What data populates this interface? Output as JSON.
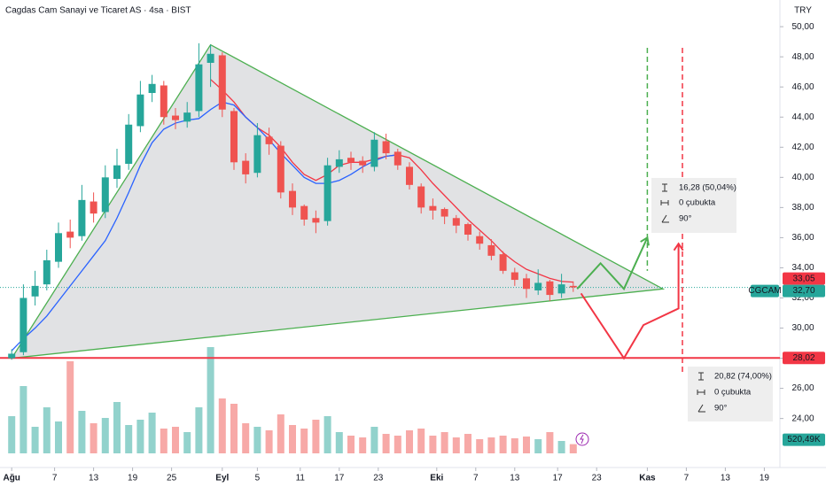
{
  "chart_data": {
    "type": "candlestick",
    "title": "Cagdas Cam Sanayi ve Ticaret AS · 4sa · BIST",
    "currency": "TRY",
    "xlim": [
      0,
      200
    ],
    "xticks": [
      {
        "value": 3,
        "label": "Ağu"
      },
      {
        "value": 14,
        "label": "7"
      },
      {
        "value": 24,
        "label": "13"
      },
      {
        "value": 34,
        "label": "19"
      },
      {
        "value": 44,
        "label": "25"
      },
      {
        "value": 57,
        "label": "Eyl"
      },
      {
        "value": 66,
        "label": "5"
      },
      {
        "value": 77,
        "label": "11"
      },
      {
        "value": 87,
        "label": "17"
      },
      {
        "value": 97,
        "label": "23"
      },
      {
        "value": 112,
        "label": "Eki"
      },
      {
        "value": 122,
        "label": "7"
      },
      {
        "value": 132,
        "label": "13"
      },
      {
        "value": 143,
        "label": "17"
      },
      {
        "value": 153,
        "label": "23"
      },
      {
        "value": 166,
        "label": "Kas"
      },
      {
        "value": 176,
        "label": "7"
      },
      {
        "value": 186,
        "label": "13"
      },
      {
        "value": 196,
        "label": "19"
      }
    ],
    "ylim": [
      21.1,
      51.3
    ],
    "yticks": [
      {
        "value": 24,
        "label": "24,00"
      },
      {
        "value": 26,
        "label": "26,00"
      },
      {
        "value": 28,
        "label": "28,00"
      },
      {
        "value": 30,
        "label": "30,00"
      },
      {
        "value": 32,
        "label": "32,00"
      },
      {
        "value": 34,
        "label": "34,00"
      },
      {
        "value": 36,
        "label": "36,00"
      },
      {
        "value": 38,
        "label": "38,00"
      },
      {
        "value": 40,
        "label": "40,00"
      },
      {
        "value": 42,
        "label": "42,00"
      },
      {
        "value": 44,
        "label": "44,00"
      },
      {
        "value": 46,
        "label": "46,00"
      },
      {
        "value": 48,
        "label": "48,00"
      },
      {
        "value": 50,
        "label": "50,00"
      }
    ],
    "up_color": "#26a69a",
    "down_color": "#ef5350",
    "candles": {
      "x": [
        3,
        6,
        9,
        12,
        15,
        18,
        21,
        24,
        27,
        30,
        33,
        36,
        39,
        42,
        45,
        48,
        51,
        54,
        57,
        60,
        63,
        66,
        69,
        72,
        75,
        78,
        81,
        84,
        87,
        90,
        93,
        96,
        99,
        102,
        105,
        108,
        111,
        114,
        117,
        120,
        123,
        126,
        129,
        132,
        135,
        138,
        141,
        144,
        147
      ],
      "open": [
        28.0,
        28.4,
        32.1,
        32.9,
        34.4,
        36.4,
        36.1,
        38.4,
        37.7,
        39.9,
        40.9,
        43.4,
        45.6,
        46.1,
        44.1,
        43.7,
        44.4,
        47.6,
        48.1,
        44.4,
        41.1,
        40.3,
        42.7,
        42.1,
        39.1,
        38.1,
        37.3,
        37.1,
        40.7,
        41.3,
        41.1,
        40.7,
        42.4,
        41.7,
        40.7,
        39.4,
        38.1,
        37.9,
        37.3,
        36.9,
        36.1,
        35.5,
        34.9,
        33.7,
        33.3,
        32.5,
        33.1,
        32.3,
        32.8
      ],
      "high": [
        28.6,
        32.9,
        33.8,
        35.2,
        37.0,
        37.2,
        39.5,
        39.0,
        40.8,
        41.9,
        44.2,
        46.4,
        46.8,
        46.4,
        44.6,
        45.0,
        48.9,
        48.8,
        48.3,
        44.6,
        41.6,
        43.6,
        43.3,
        42.4,
        39.6,
        38.2,
        37.8,
        41.3,
        41.8,
        41.7,
        41.4,
        43.0,
        42.9,
        41.9,
        41.0,
        39.6,
        38.6,
        38.0,
        37.5,
        37.0,
        36.4,
        35.9,
        35.1,
        34.0,
        33.6,
        33.9,
        33.2,
        33.6,
        33.1
      ],
      "low": [
        27.9,
        28.2,
        31.5,
        32.5,
        34.0,
        35.3,
        35.8,
        37.0,
        37.3,
        39.3,
        40.5,
        43.0,
        45.0,
        43.5,
        43.2,
        43.3,
        44.0,
        46.0,
        44.0,
        40.5,
        39.6,
        40.0,
        41.5,
        38.6,
        37.5,
        36.8,
        36.3,
        36.8,
        40.3,
        40.5,
        40.3,
        40.4,
        41.2,
        40.5,
        39.2,
        37.6,
        37.2,
        36.9,
        36.3,
        35.8,
        35.2,
        34.5,
        33.6,
        32.8,
        32.0,
        32.2,
        31.8,
        32.0,
        32.4
      ],
      "close": [
        28.3,
        32.0,
        32.8,
        34.5,
        36.3,
        36.0,
        38.5,
        37.6,
        40.0,
        40.8,
        43.5,
        45.5,
        46.2,
        44.0,
        43.8,
        44.3,
        47.5,
        48.2,
        44.5,
        41.0,
        40.2,
        42.8,
        42.2,
        39.0,
        38.0,
        37.2,
        37.0,
        40.8,
        41.2,
        41.0,
        40.8,
        42.5,
        41.6,
        40.8,
        39.5,
        38.0,
        37.8,
        37.4,
        36.8,
        36.2,
        35.6,
        34.8,
        33.8,
        33.2,
        32.6,
        33.0,
        32.2,
        32.9,
        32.7
      ]
    },
    "volume": {
      "values": [
        2100,
        3800,
        1500,
        2600,
        1800,
        5200,
        2400,
        1700,
        2000,
        2900,
        1600,
        1900,
        2300,
        1400,
        1500,
        1200,
        2600,
        6000,
        3100,
        2800,
        1700,
        1500,
        1300,
        2200,
        1600,
        1400,
        1900,
        2100,
        1200,
        1000,
        900,
        1500,
        1100,
        1000,
        1300,
        1400,
        1000,
        1200,
        900,
        1100,
        800,
        900,
        1000,
        850,
        950,
        800,
        1200,
        700,
        520.49
      ],
      "last_label": "520,49K",
      "color": "#26a69a"
    },
    "moving_averages": [
      {
        "color": "#f23645",
        "last_label": "33,05",
        "values": [
          null,
          null,
          null,
          null,
          null,
          null,
          null,
          null,
          null,
          null,
          null,
          null,
          null,
          null,
          null,
          null,
          null,
          46.5,
          45.8,
          45.0,
          44.0,
          43.3,
          42.8,
          42.0,
          41.0,
          40.2,
          39.8,
          40.2,
          40.8,
          41.0,
          41.0,
          41.2,
          41.4,
          41.5,
          41.3,
          40.5,
          39.6,
          38.8,
          38.0,
          37.2,
          36.5,
          35.8,
          35.0,
          34.4,
          33.9,
          33.6,
          33.3,
          33.1,
          33.05
        ]
      },
      {
        "color": "#2962ff",
        "values": [
          28.5,
          29.3,
          30.0,
          30.8,
          31.8,
          32.8,
          33.8,
          34.8,
          35.8,
          37.3,
          39.0,
          40.8,
          42.3,
          43.2,
          43.6,
          43.8,
          43.9,
          44.5,
          45.0,
          44.8,
          44.0,
          43.3,
          42.5,
          41.6,
          40.8,
          40.0,
          39.6,
          39.6,
          39.8,
          40.2,
          40.7,
          41.1,
          41.4,
          41.5,
          null,
          null,
          null,
          null,
          null,
          null,
          null,
          null,
          null,
          null,
          null,
          null,
          null,
          null,
          null
        ]
      }
    ],
    "price_line": {
      "value": 32.7,
      "label": "32,70",
      "symbol": "CGCAM",
      "color": "#26a69a"
    },
    "level": {
      "value": 28.02,
      "label": "28,02",
      "color": "#f23645"
    },
    "triangle": {
      "x": [
        3,
        54,
        170
      ],
      "y": [
        28.0,
        48.8,
        32.6
      ],
      "color": "#4caf50"
    },
    "scenarios": [
      {
        "color": "#4caf50",
        "x": [
          148,
          154,
          160,
          166
        ],
        "y": [
          32.6,
          34.3,
          32.6,
          36.0
        ]
      },
      {
        "color": "#f23645",
        "x": [
          149,
          160,
          165,
          174,
          174
        ],
        "y": [
          32.3,
          28.0,
          30.2,
          31.3,
          35.6
        ]
      }
    ],
    "targets": [
      {
        "color": "#4caf50",
        "x": 166,
        "y": [
          48.6,
          33.8
        ]
      },
      {
        "color": "#f23645",
        "x": 175,
        "y": [
          48.6,
          27.0
        ]
      }
    ],
    "measures": [
      {
        "change": "16,28 (50,04%)",
        "bars": "0 çubukta",
        "angle": "90°"
      },
      {
        "change": "20,82 (74,00%)",
        "bars": "0 çubukta",
        "angle": "90°"
      }
    ]
  }
}
